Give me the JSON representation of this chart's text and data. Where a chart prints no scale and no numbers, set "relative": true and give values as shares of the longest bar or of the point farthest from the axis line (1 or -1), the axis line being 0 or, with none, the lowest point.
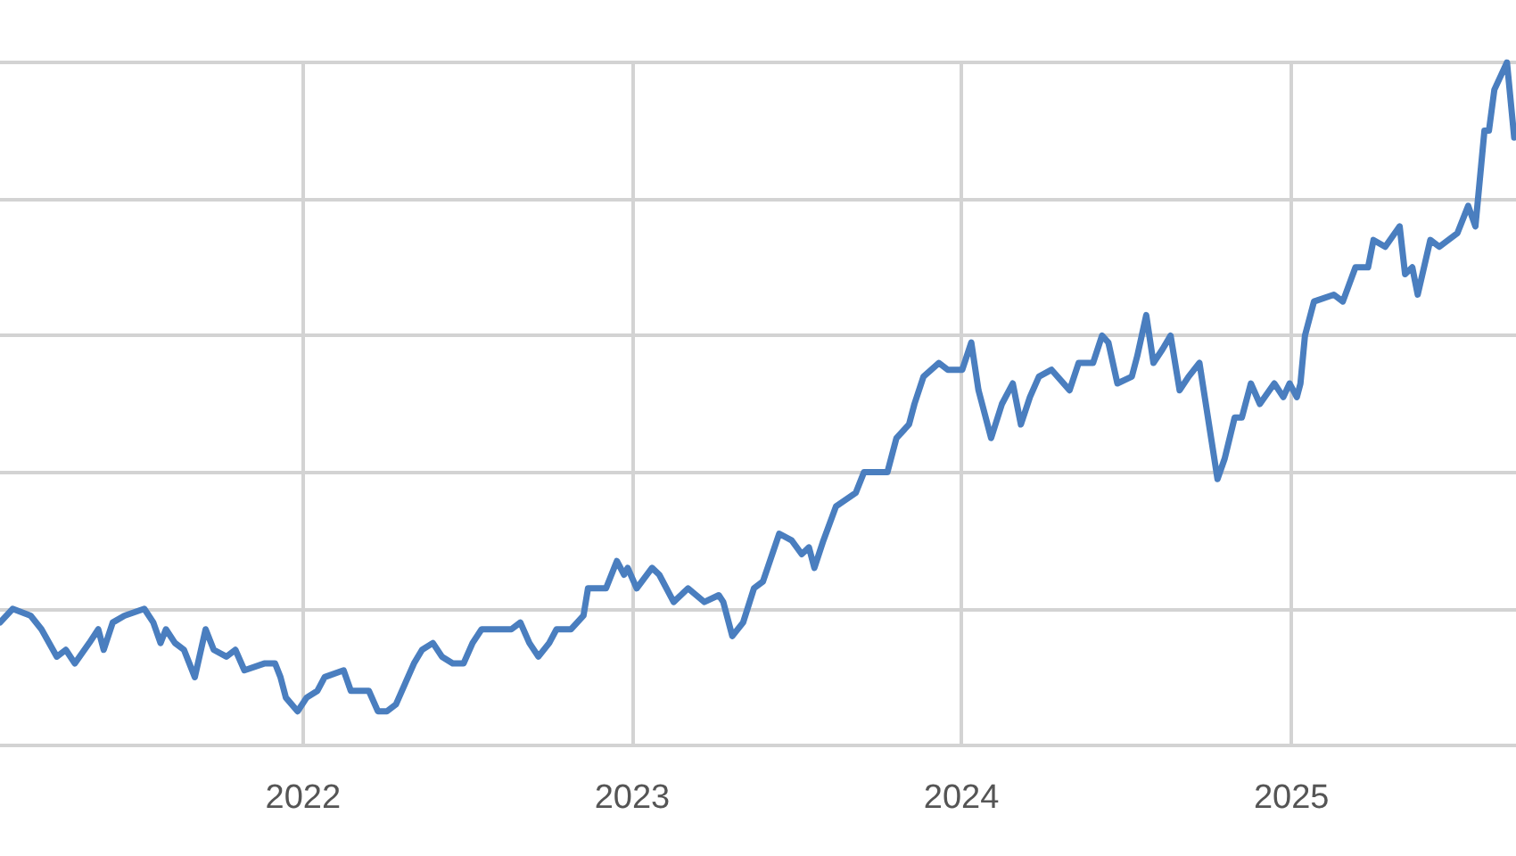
{
  "chart_data": {
    "type": "line",
    "relative": true,
    "grid": true,
    "marker": "none",
    "line_style": "solid",
    "xlim": [
      "2021-01-30",
      "2025-09-07"
    ],
    "xticks": [
      "2022",
      "2023",
      "2024",
      "2025"
    ],
    "x": [
      "2021-01-30",
      "2021-02-13",
      "2021-03-05",
      "2021-03-17",
      "2021-04-03",
      "2021-04-13",
      "2021-04-23",
      "2021-05-09",
      "2021-05-19",
      "2021-05-25",
      "2021-06-04",
      "2021-06-17",
      "2021-07-09",
      "2021-07-19",
      "2021-07-27",
      "2021-08-02",
      "2021-08-12",
      "2021-08-22",
      "2021-09-03",
      "2021-09-15",
      "2021-09-24",
      "2021-10-08",
      "2021-10-18",
      "2021-10-28",
      "2021-11-19",
      "2021-12-01",
      "2021-12-07",
      "2021-12-13",
      "2021-12-26",
      "2022-01-05",
      "2022-01-17",
      "2022-01-25",
      "2022-02-15",
      "2022-02-23",
      "2022-03-15",
      "2022-03-25",
      "2022-04-04",
      "2022-04-14",
      "2022-04-24",
      "2022-05-04",
      "2022-05-13",
      "2022-05-25",
      "2022-06-04",
      "2022-06-16",
      "2022-06-28",
      "2022-07-08",
      "2022-07-18",
      "2022-07-30",
      "2022-08-11",
      "2022-08-20",
      "2022-08-30",
      "2022-09-09",
      "2022-09-19",
      "2022-10-01",
      "2022-10-09",
      "2022-10-25",
      "2022-11-08",
      "2022-11-13",
      "2022-12-03",
      "2022-12-15",
      "2022-12-23",
      "2022-12-27",
      "2023-01-06",
      "2023-01-23",
      "2023-01-31",
      "2023-02-16",
      "2023-03-04",
      "2023-03-22",
      "2023-04-07",
      "2023-04-12",
      "2023-04-22",
      "2023-05-04",
      "2023-05-16",
      "2023-05-26",
      "2023-06-13",
      "2023-06-27",
      "2023-07-08",
      "2023-07-16",
      "2023-07-22",
      "2023-08-01",
      "2023-08-15",
      "2023-09-06",
      "2023-09-15",
      "2023-10-11",
      "2023-10-21",
      "2023-11-04",
      "2023-11-10",
      "2023-11-20",
      "2023-12-07",
      "2023-12-17",
      "2024-01-02",
      "2024-01-12",
      "2024-01-20",
      "2024-02-03",
      "2024-02-15",
      "2024-02-27",
      "2024-03-07",
      "2024-03-17",
      "2024-03-27",
      "2024-04-10",
      "2024-04-30",
      "2024-05-10",
      "2024-05-26",
      "2024-06-05",
      "2024-06-12",
      "2024-06-22",
      "2024-07-08",
      "2024-07-14",
      "2024-07-24",
      "2024-08-01",
      "2024-08-11",
      "2024-08-20",
      "2024-08-30",
      "2024-09-09",
      "2024-09-21",
      "2024-10-11",
      "2024-10-19",
      "2024-10-30",
      "2024-11-07",
      "2024-11-17",
      "2024-11-27",
      "2024-12-13",
      "2024-12-23",
      "2024-12-30",
      "2025-01-07",
      "2025-01-11",
      "2025-01-16",
      "2025-01-26",
      "2025-02-17",
      "2025-02-27",
      "2025-03-13",
      "2025-03-27",
      "2025-04-02",
      "2025-04-15",
      "2025-05-01",
      "2025-05-07",
      "2025-05-15",
      "2025-05-21",
      "2025-06-04",
      "2025-06-14",
      "2025-07-04",
      "2025-07-16",
      "2025-07-24",
      "2025-08-03",
      "2025-08-08",
      "2025-08-14",
      "2025-08-28",
      "2025-09-05"
    ],
    "series": [
      {
        "color": "#4a7ebf",
        "values": [
          0.18,
          0.2,
          0.19,
          0.17,
          0.13,
          0.14,
          0.12,
          0.15,
          0.17,
          0.14,
          0.18,
          0.19,
          0.2,
          0.18,
          0.15,
          0.17,
          0.15,
          0.14,
          0.1,
          0.17,
          0.14,
          0.13,
          0.14,
          0.11,
          0.12,
          0.12,
          0.1,
          0.07,
          0.05,
          0.07,
          0.08,
          0.1,
          0.11,
          0.08,
          0.08,
          0.05,
          0.05,
          0.06,
          0.09,
          0.12,
          0.14,
          0.15,
          0.13,
          0.12,
          0.12,
          0.15,
          0.17,
          0.17,
          0.17,
          0.17,
          0.18,
          0.15,
          0.13,
          0.15,
          0.17,
          0.17,
          0.19,
          0.23,
          0.23,
          0.27,
          0.25,
          0.26,
          0.23,
          0.26,
          0.25,
          0.21,
          0.23,
          0.21,
          0.22,
          0.21,
          0.16,
          0.18,
          0.23,
          0.24,
          0.31,
          0.3,
          0.28,
          0.29,
          0.26,
          0.3,
          0.35,
          0.37,
          0.4,
          0.4,
          0.45,
          0.47,
          0.5,
          0.54,
          0.56,
          0.55,
          0.55,
          0.59,
          0.52,
          0.45,
          0.5,
          0.53,
          0.47,
          0.51,
          0.54,
          0.55,
          0.52,
          0.56,
          0.56,
          0.6,
          0.59,
          0.53,
          0.54,
          0.57,
          0.63,
          0.56,
          0.58,
          0.6,
          0.52,
          0.54,
          0.56,
          0.39,
          0.42,
          0.48,
          0.48,
          0.53,
          0.5,
          0.53,
          0.51,
          0.53,
          0.51,
          0.53,
          0.6,
          0.65,
          0.66,
          0.65,
          0.7,
          0.7,
          0.74,
          0.73,
          0.76,
          0.69,
          0.7,
          0.66,
          0.74,
          0.73,
          0.75,
          0.79,
          0.76,
          0.9,
          0.9,
          0.96,
          1,
          0.89
        ]
      }
    ]
  }
}
